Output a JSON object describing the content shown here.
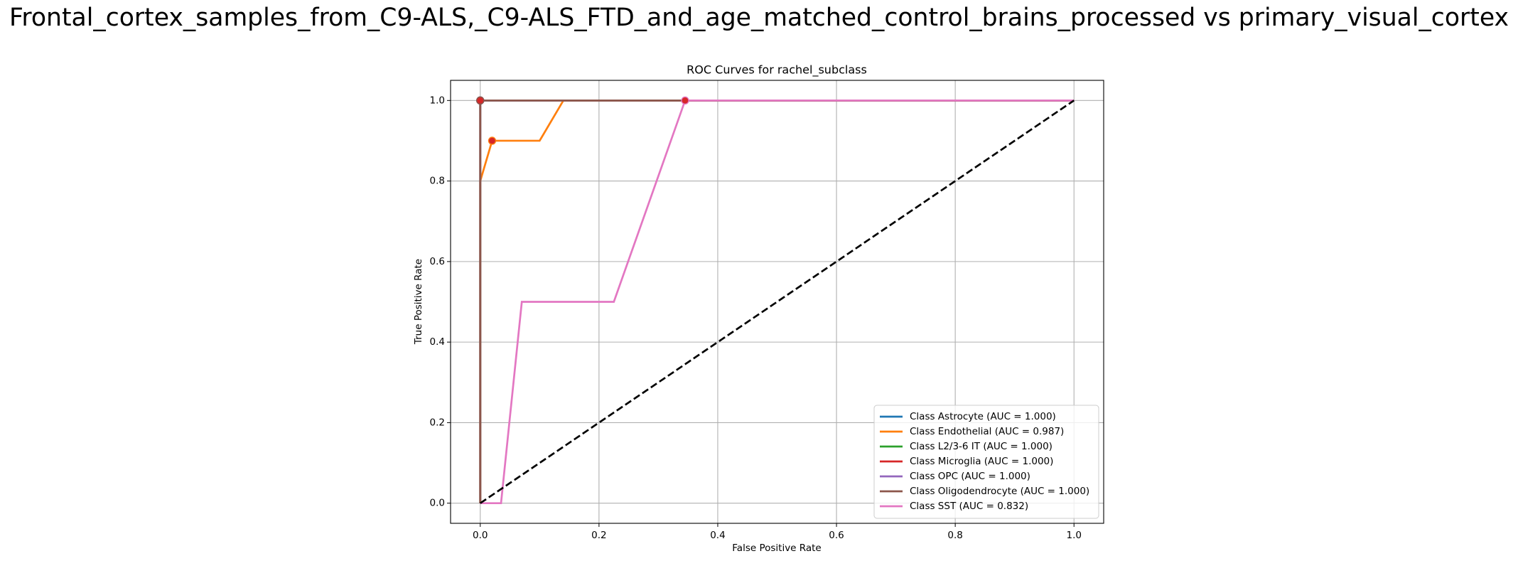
{
  "chart_data": {
    "type": "line",
    "suptitle": "Frontal_cortex_samples_from_C9-ALS,_C9-ALS_FTD_and_age_matched_control_brains_processed vs primary_visual_cortex",
    "title": "ROC Curves for rachel_subclass",
    "xlabel": "False Positive Rate",
    "ylabel": "True Positive Rate",
    "xlim": [
      -0.05,
      1.05
    ],
    "ylim": [
      -0.05,
      1.05
    ],
    "xticks": [
      {
        "value": 0,
        "label": "0.0"
      },
      0.2,
      0.4,
      0.6,
      0.8,
      {
        "value": 1,
        "label": "1.0"
      }
    ],
    "yticks": [
      {
        "value": 0,
        "label": "0.0"
      },
      0.2,
      0.4,
      0.6,
      0.8,
      {
        "value": 1,
        "label": "1.0"
      }
    ],
    "grid": true,
    "legend": "lower right",
    "marker_color": "#d62728",
    "series": [
      {
        "name": "Class Astrocyte (AUC = 1.000)",
        "color": "#1f77b4",
        "x": [
          0,
          0,
          1
        ],
        "values": [
          0,
          1,
          1
        ],
        "point": {
          "x": 0,
          "y": 1
        }
      },
      {
        "name": "Class Endothelial (AUC = 0.987)",
        "color": "#ff7f0e",
        "x": [
          0,
          0,
          0.02,
          0.1,
          0.14,
          1
        ],
        "values": [
          0,
          0.8,
          0.9,
          0.9,
          1,
          1
        ],
        "point": {
          "x": 0.02,
          "y": 0.9
        }
      },
      {
        "name": "Class L2/3-6 IT (AUC = 1.000)",
        "color": "#2ca02c",
        "x": [
          0,
          0,
          1
        ],
        "values": [
          0,
          1,
          1
        ],
        "point": {
          "x": 0,
          "y": 1
        }
      },
      {
        "name": "Class Microglia (AUC = 1.000)",
        "color": "#d62728",
        "x": [
          0,
          0,
          1
        ],
        "values": [
          0,
          1,
          1
        ],
        "point": {
          "x": 0,
          "y": 1
        }
      },
      {
        "name": "Class OPC (AUC = 1.000)",
        "color": "#9467bd",
        "x": [
          0,
          0,
          1
        ],
        "values": [
          0,
          1,
          1
        ],
        "point": {
          "x": 0,
          "y": 1
        }
      },
      {
        "name": "Class Oligodendrocyte (AUC = 1.000)",
        "color": "#8c564b",
        "x": [
          0,
          0,
          1
        ],
        "values": [
          0,
          1,
          1
        ],
        "point": {
          "x": 0,
          "y": 1
        }
      },
      {
        "name": "Class SST (AUC = 0.832)",
        "color": "#e377c2",
        "x": [
          0,
          0.035,
          0.07,
          0.225,
          0.345,
          1
        ],
        "values": [
          0,
          0,
          0.5,
          0.5,
          1,
          1
        ],
        "point": {
          "x": 0.345,
          "y": 1
        }
      }
    ],
    "reference_line": {
      "color": "#000000",
      "x": [
        0,
        1
      ],
      "values": [
        0,
        1
      ]
    }
  }
}
